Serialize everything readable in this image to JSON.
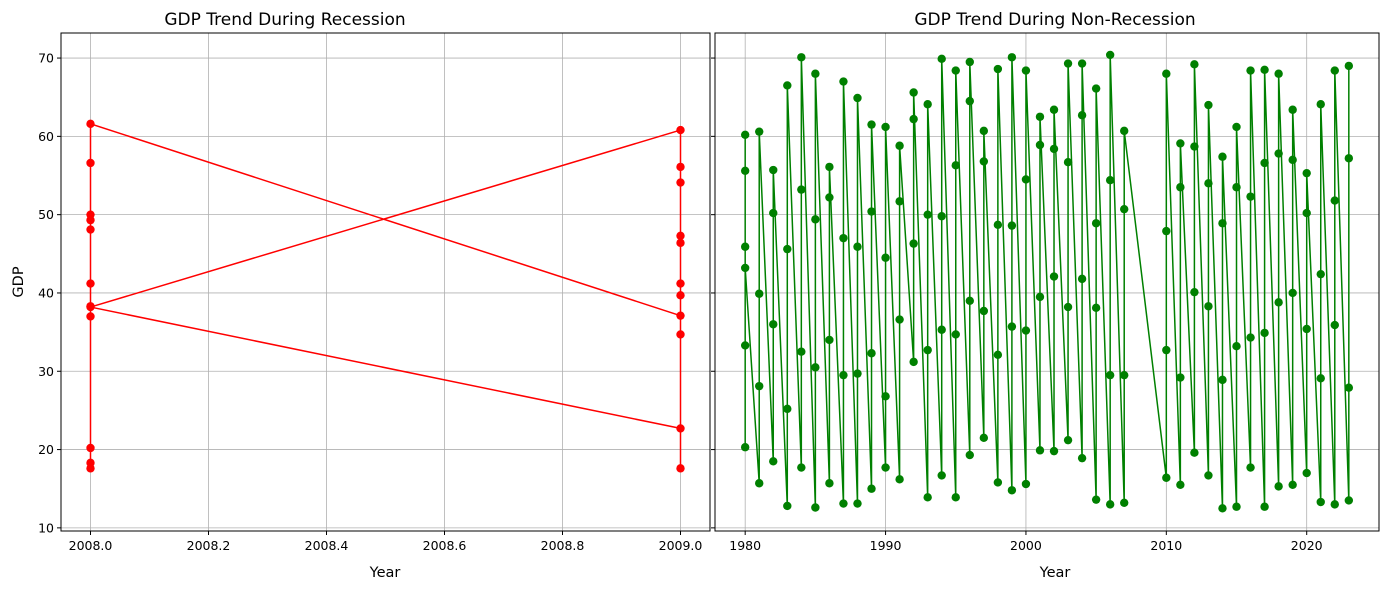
{
  "chart_data": [
    {
      "type": "line",
      "title": "GDP Trend During Recession",
      "xlabel": "Year",
      "ylabel": "GDP",
      "xlim": [
        1999.95,
        2009.05
      ],
      "xlim_note": "",
      "x_display_range": [
        2007.95,
        2009.05
      ],
      "ylim": [
        9.6,
        73.2
      ],
      "grid": true,
      "x_ticks": [
        "2008.0",
        "2008.2",
        "2008.4",
        "2008.6",
        "2008.8",
        "2009.0"
      ],
      "y_ticks": [
        "10",
        "20",
        "30",
        "40",
        "50",
        "60",
        "70"
      ],
      "series": [
        {
          "color": "#ff0000",
          "marker": "circle",
          "x": [
            2008,
            2008,
            2008,
            2008,
            2008,
            2008,
            2008,
            2008,
            2008,
            2008,
            2008,
            2009,
            2009,
            2009,
            2009,
            2009,
            2009,
            2009,
            2009,
            2009,
            2009,
            2008,
            2009
          ],
          "y": [
            38.3,
            37.0,
            18.3,
            17.6,
            20.2,
            41.2,
            48.1,
            49.3,
            50.0,
            56.6,
            61.6,
            37.1,
            17.6,
            34.7,
            39.7,
            41.2,
            46.4,
            47.3,
            54.1,
            56.1,
            60.8,
            38.2,
            22.7
          ]
        }
      ]
    },
    {
      "type": "line",
      "title": "GDP Trend During Non-Recession",
      "xlabel": "Year",
      "ylabel": "",
      "xlim": [
        1977.85,
        2025.15
      ],
      "ylim": [
        9.6,
        73.2
      ],
      "grid": true,
      "x_ticks": [
        "1980",
        "1990",
        "2000",
        "2010",
        "2020"
      ],
      "y_ticks": [
        "10",
        "20",
        "30",
        "40",
        "50",
        "60",
        "70"
      ],
      "series": [
        {
          "color": "#008000",
          "marker": "circle",
          "x": [
            1980,
            1980,
            1980,
            1980,
            1980,
            1980,
            1981,
            1981,
            1981,
            1981,
            1982,
            1982,
            1982,
            1982,
            1983,
            1983,
            1983,
            1983,
            1984,
            1984,
            1984,
            1984,
            1985,
            1985,
            1985,
            1985,
            1986,
            1986,
            1986,
            1986,
            1987,
            1987,
            1987,
            1987,
            1988,
            1988,
            1988,
            1988,
            1989,
            1989,
            1989,
            1989,
            1990,
            1990,
            1990,
            1990,
            1991,
            1991,
            1991,
            1991,
            1992,
            1992,
            1992,
            1992,
            1993,
            1993,
            1993,
            1993,
            1994,
            1994,
            1994,
            1994,
            1995,
            1995,
            1995,
            1995,
            1996,
            1996,
            1996,
            1996,
            1997,
            1997,
            1997,
            1997,
            1998,
            1998,
            1998,
            1998,
            1999,
            1999,
            1999,
            1999,
            2000,
            2000,
            2000,
            2000,
            2001,
            2001,
            2001,
            2001,
            2002,
            2002,
            2002,
            2002,
            2003,
            2003,
            2003,
            2003,
            2004,
            2004,
            2004,
            2004,
            2005,
            2005,
            2005,
            2005,
            2006,
            2006,
            2006,
            2006,
            2007,
            2007,
            2007,
            2007,
            2010,
            2010,
            2010,
            2010,
            2011,
            2011,
            2011,
            2011,
            2012,
            2012,
            2012,
            2012,
            2013,
            2013,
            2013,
            2013,
            2014,
            2014,
            2014,
            2014,
            2015,
            2015,
            2015,
            2015,
            2016,
            2016,
            2016,
            2016,
            2017,
            2017,
            2017,
            2017,
            2018,
            2018,
            2018,
            2018,
            2019,
            2019,
            2019,
            2019,
            2020,
            2020,
            2020,
            2020,
            2021,
            2021,
            2021,
            2021,
            2022,
            2022,
            2022,
            2022,
            2023,
            2023,
            2023,
            2023
          ],
          "y": [
            20.3,
            33.3,
            45.9,
            60.2,
            55.6,
            43.2,
            15.7,
            28.1,
            39.9,
            60.6,
            18.5,
            36.0,
            50.2,
            55.7,
            12.8,
            25.2,
            45.6,
            66.5,
            17.7,
            32.5,
            53.2,
            70.1,
            12.6,
            30.5,
            49.4,
            68.0,
            15.7,
            34.0,
            52.2,
            56.1,
            13.1,
            29.5,
            47.0,
            67.0,
            13.1,
            29.7,
            45.9,
            64.9,
            15.0,
            32.3,
            50.4,
            61.5,
            17.7,
            26.8,
            44.5,
            61.2,
            16.2,
            36.6,
            51.7,
            58.8,
            31.2,
            46.3,
            62.2,
            65.6,
            13.9,
            32.7,
            50.0,
            64.1,
            16.7,
            35.3,
            49.8,
            69.9,
            13.9,
            34.7,
            56.3,
            68.4,
            19.3,
            39.0,
            64.5,
            69.5,
            21.5,
            37.7,
            56.8,
            60.7,
            15.8,
            32.1,
            48.7,
            68.6,
            14.8,
            35.7,
            48.6,
            70.1,
            15.6,
            35.2,
            54.5,
            68.4,
            19.9,
            39.5,
            58.9,
            62.5,
            19.8,
            42.1,
            58.4,
            63.4,
            21.2,
            38.2,
            56.7,
            69.3,
            18.9,
            41.8,
            62.7,
            69.3,
            13.6,
            38.1,
            48.9,
            66.1,
            13.0,
            29.5,
            54.4,
            70.4,
            13.2,
            29.5,
            50.7,
            60.7,
            16.4,
            32.7,
            47.9,
            68.0,
            15.5,
            29.2,
            53.5,
            59.1,
            19.6,
            40.1,
            58.7,
            69.2,
            16.7,
            38.3,
            54.0,
            64.0,
            12.5,
            28.9,
            48.9,
            57.4,
            12.7,
            33.2,
            53.5,
            61.2,
            17.7,
            34.3,
            52.3,
            68.4,
            12.7,
            34.9,
            56.6,
            68.5,
            15.3,
            38.8,
            57.8,
            68.0,
            15.5,
            40.0,
            57.0,
            63.4,
            17.0,
            35.4,
            50.2,
            55.3,
            13.3,
            29.1,
            42.4,
            64.1,
            13.0,
            35.9,
            51.8,
            68.4,
            13.5,
            27.9,
            57.2,
            69.0
          ]
        }
      ]
    }
  ]
}
